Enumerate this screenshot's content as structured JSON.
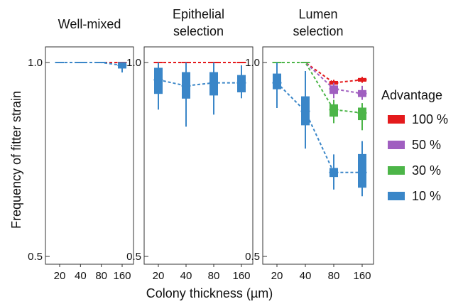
{
  "chart_data": {
    "type": "box",
    "xlabel": "Colony thickness (µm)",
    "ylabel": "Frequency of fitter strain",
    "ylim": [
      0.5,
      1.0
    ],
    "y_scale": "log",
    "y_ticks": [
      "0.5",
      "1.0"
    ],
    "x_ticks": [
      "20",
      "40",
      "80",
      "160"
    ],
    "legend": {
      "title": "Advantage",
      "placement": "right",
      "items": [
        {
          "label": "100 %",
          "color": "#e41a1c"
        },
        {
          "label": "50 %",
          "color": "#a05fc0"
        },
        {
          "label": "30 %",
          "color": "#4cb548"
        },
        {
          "label": "10 %",
          "color": "#3a86c8"
        }
      ]
    },
    "panels": [
      {
        "title_lines": [
          "Well-mixed"
        ],
        "series": [
          {
            "color": "#e41a1c",
            "medians": [
              1.0,
              1.0,
              1.0,
              1.0
            ],
            "boxes": [
              [
                1.0,
                1.0
              ],
              [
                1.0,
                1.0
              ],
              [
                1.0,
                1.0
              ],
              [
                1.0,
                1.0
              ]
            ],
            "whiskers": [
              [
                1.0,
                1.0
              ],
              [
                1.0,
                1.0
              ],
              [
                1.0,
                1.0
              ],
              [
                1.0,
                1.0
              ]
            ]
          },
          {
            "color": "#3a86c8",
            "medians": [
              1.0,
              1.0,
              1.0,
              0.99
            ],
            "boxes": [
              [
                1.0,
                1.0
              ],
              [
                1.0,
                1.0
              ],
              [
                1.0,
                1.0
              ],
              [
                0.98,
                1.0
              ]
            ],
            "whiskers": [
              [
                1.0,
                1.0
              ],
              [
                1.0,
                1.0
              ],
              [
                1.0,
                1.0
              ],
              [
                0.965,
                1.0
              ]
            ]
          }
        ]
      },
      {
        "title_lines": [
          "Epithelial",
          "selection"
        ],
        "series": [
          {
            "color": "#e41a1c",
            "medians": [
              1.0,
              1.0,
              1.0,
              1.0
            ],
            "boxes": [
              [
                1.0,
                1.0
              ],
              [
                1.0,
                1.0
              ],
              [
                1.0,
                1.0
              ],
              [
                1.0,
                1.0
              ]
            ],
            "whiskers": [
              [
                1.0,
                1.0
              ],
              [
                1.0,
                1.0
              ],
              [
                1.0,
                1.0
              ],
              [
                1.0,
                1.0
              ]
            ]
          },
          {
            "color": "#3a86c8",
            "medians": [
              0.94,
              0.92,
              0.93,
              0.93
            ],
            "boxes": [
              [
                0.895,
                0.98
              ],
              [
                0.88,
                0.965
              ],
              [
                0.89,
                0.965
              ],
              [
                0.9,
                0.955
              ]
            ],
            "whiskers": [
              [
                0.845,
                1.0
              ],
              [
                0.795,
                1.0
              ],
              [
                0.83,
                1.0
              ],
              [
                0.88,
                0.99
              ]
            ]
          }
        ]
      },
      {
        "title_lines": [
          "Lumen",
          "selection"
        ],
        "series": [
          {
            "color": "#e41a1c",
            "medians": [
              1.0,
              1.0,
              0.93,
              0.94
            ],
            "boxes": [
              [
                1.0,
                1.0
              ],
              [
                1.0,
                1.0
              ],
              [
                0.925,
                0.935
              ],
              [
                0.935,
                0.945
              ]
            ],
            "whiskers": [
              [
                1.0,
                1.0
              ],
              [
                1.0,
                1.0
              ],
              [
                0.92,
                0.94
              ],
              [
                0.93,
                0.95
              ]
            ]
          },
          {
            "color": "#a05fc0",
            "medians": [
              1.0,
              1.0,
              0.91,
              0.895
            ],
            "boxes": [
              [
                1.0,
                1.0
              ],
              [
                1.0,
                1.0
              ],
              [
                0.895,
                0.92
              ],
              [
                0.885,
                0.905
              ]
            ],
            "whiskers": [
              [
                1.0,
                1.0
              ],
              [
                1.0,
                1.0
              ],
              [
                0.88,
                0.93
              ],
              [
                0.875,
                0.92
              ]
            ]
          },
          {
            "color": "#4cb548",
            "medians": [
              1.0,
              1.0,
              0.845,
              0.835
            ],
            "boxes": [
              [
                1.0,
                1.0
              ],
              [
                1.0,
                1.0
              ],
              [
                0.825,
                0.86
              ],
              [
                0.815,
                0.85
              ]
            ],
            "whiskers": [
              [
                1.0,
                1.0
              ],
              [
                1.0,
                1.0
              ],
              [
                0.805,
                0.875
              ],
              [
                0.785,
                0.865
              ]
            ]
          },
          {
            "color": "#3a86c8",
            "medians": [
              0.93,
              0.84,
              0.675,
              0.675
            ],
            "boxes": [
              [
                0.91,
                0.96
              ],
              [
                0.8,
                0.885
              ],
              [
                0.665,
                0.685
              ],
              [
                0.64,
                0.72
              ]
            ],
            "whiskers": [
              [
                0.85,
                1.0
              ],
              [
                0.735,
                0.97
              ],
              [
                0.635,
                0.72
              ],
              [
                0.62,
                0.755
              ]
            ]
          }
        ]
      }
    ]
  }
}
